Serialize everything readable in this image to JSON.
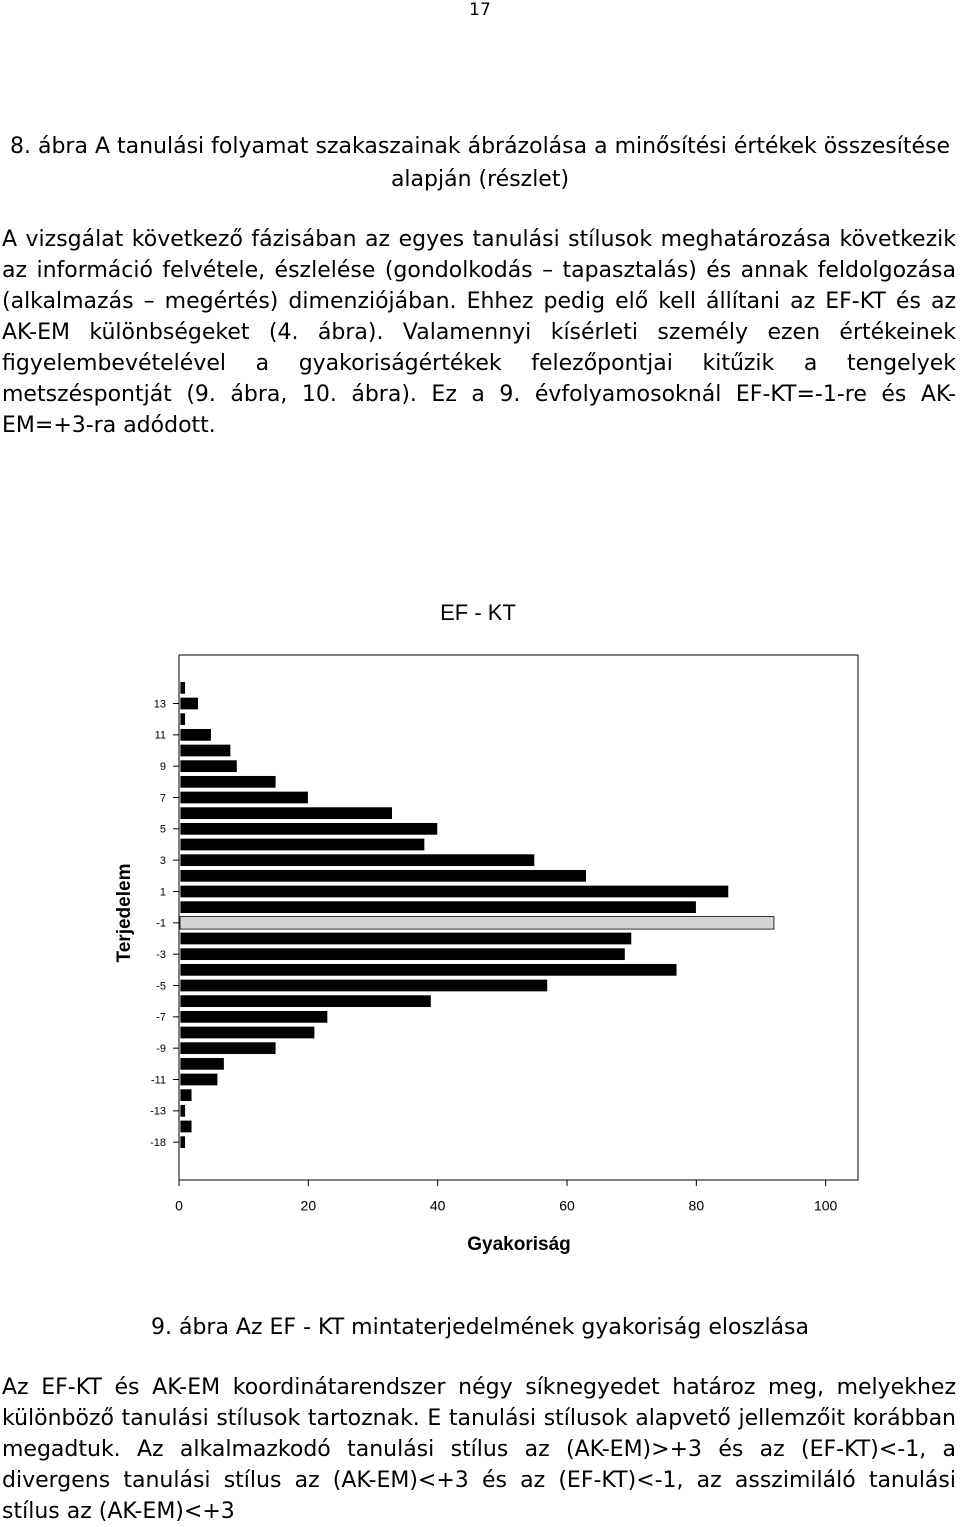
{
  "page_number": "17",
  "figure8_caption": "8. ábra A tanulási folyamat szakaszainak ábrázolása a minősítési értékek összesítése alapján (részlet)",
  "paragraph1": "A vizsgálat következő fázisában az egyes tanulási stílusok meghatározása következik az információ felvétele, észlelése (gondolkodás – tapasztalás) és annak feldolgozása (alkalmazás – megértés) dimenziójában. Ehhez pedig elő kell állítani az EF-KT és az AK-EM különbségeket (4. ábra). Valamennyi kísérleti személy ezen értékeinek figyelembevételével a gyakoriságértékek felezőpontjai kitűzik a tengelyek metszéspontját (9. ábra, 10. ábra). Ez a 9. évfolyamosoknál EF-KT=-1-re és AK-EM=+3-ra adódott.",
  "chart_data": {
    "type": "bar",
    "orientation": "horizontal",
    "title": "EF - KT",
    "y_label": "Terjedelem",
    "x_label": "Gyakoriság",
    "categories": [
      null,
      "13",
      null,
      "11",
      null,
      "9",
      null,
      "7",
      null,
      "5",
      null,
      "3",
      null,
      "1",
      null,
      "-1",
      null,
      "-3",
      null,
      "-5",
      null,
      "-7",
      null,
      "-9",
      null,
      "-11",
      null,
      "-13",
      null,
      "-18"
    ],
    "values": [
      1,
      3,
      1,
      5,
      8,
      9,
      15,
      20,
      33,
      40,
      38,
      55,
      63,
      85,
      80,
      92,
      70,
      69,
      77,
      57,
      39,
      23,
      21,
      15,
      7,
      6,
      2,
      1,
      2,
      1
    ],
    "colors": [
      "#000000",
      "#000000",
      "#000000",
      "#000000",
      "#000000",
      "#000000",
      "#000000",
      "#000000",
      "#000000",
      "#000000",
      "#000000",
      "#000000",
      "#000000",
      "#000000",
      "#000000",
      "#d4d4d4",
      "#000000",
      "#000000",
      "#000000",
      "#000000",
      "#000000",
      "#000000",
      "#000000",
      "#000000",
      "#000000",
      "#000000",
      "#000000",
      "#000000",
      "#000000",
      "#000000"
    ],
    "xlim": [
      0,
      105
    ],
    "xticks": [
      0,
      20,
      40,
      60,
      80,
      100
    ]
  },
  "figure9_caption": "9. ábra Az EF - KT mintaterjedelmének gyakoriság eloszlása",
  "paragraph2": "Az EF-KT és AK-EM koordinátarendszer négy síknegyedet határoz meg, melyekhez különböző tanulási stílusok tartoznak. E tanulási stílusok alapvető jellemzőit korábban megadtuk. Az alkalmazkodó tanulási stílus az (AK-EM)>+3 és az (EF-KT)<-1, a divergens tanulási stílus az (AK-EM)<+3 és az (EF-KT)<-1, az asszimiláló tanulási stílus az (AK-EM)<+3"
}
